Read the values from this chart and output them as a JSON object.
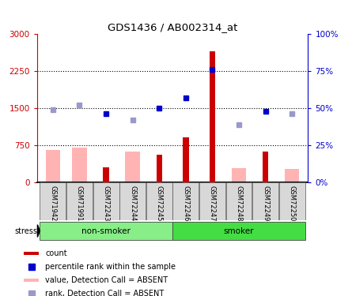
{
  "title": "GDS1436 / AB002314_at",
  "samples": [
    "GSM71942",
    "GSM71991",
    "GSM72243",
    "GSM72244",
    "GSM72245",
    "GSM72246",
    "GSM72247",
    "GSM72248",
    "GSM72249",
    "GSM72250"
  ],
  "count_values": [
    null,
    null,
    300,
    null,
    550,
    900,
    2650,
    null,
    620,
    null
  ],
  "count_absent_values": [
    650,
    700,
    null,
    625,
    null,
    null,
    null,
    280,
    null,
    260
  ],
  "rank_pct_values": [
    null,
    null,
    46,
    null,
    50,
    57,
    76,
    null,
    48,
    null
  ],
  "rank_pct_absent": [
    49,
    52,
    null,
    42,
    null,
    null,
    null,
    39,
    null,
    46
  ],
  "ylim_left": [
    0,
    3000
  ],
  "ylim_right": [
    0,
    100
  ],
  "yticks_left": [
    0,
    750,
    1500,
    2250,
    3000
  ],
  "yticks_right": [
    0,
    25,
    50,
    75,
    100
  ],
  "ytick_labels_left": [
    "0",
    "750",
    "1500",
    "2250",
    "3000"
  ],
  "ytick_labels_right": [
    "0%",
    "25%",
    "50%",
    "75%",
    "100%"
  ],
  "color_count": "#cc0000",
  "color_count_absent": "#ffb3b3",
  "color_rank": "#0000cc",
  "color_rank_absent": "#9999cc",
  "group_spans": [
    {
      "label": "non-smoker",
      "start": 0,
      "end": 4,
      "color": "#88ee88"
    },
    {
      "label": "smoker",
      "start": 5,
      "end": 9,
      "color": "#44dd44"
    }
  ],
  "stress_label": "stress",
  "legend_items": [
    {
      "label": "count",
      "color": "#cc0000",
      "type": "bar"
    },
    {
      "label": "percentile rank within the sample",
      "color": "#0000cc",
      "type": "square"
    },
    {
      "label": "value, Detection Call = ABSENT",
      "color": "#ffb3b3",
      "type": "bar"
    },
    {
      "label": "rank, Detection Call = ABSENT",
      "color": "#9999cc",
      "type": "square"
    }
  ]
}
